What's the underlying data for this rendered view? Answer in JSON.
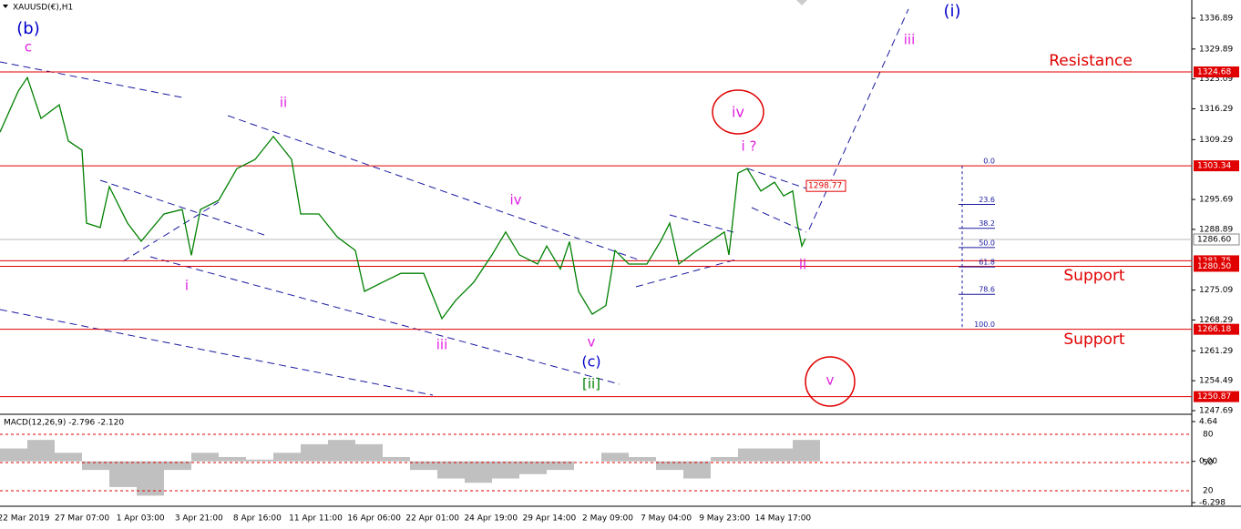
{
  "chart_data": {
    "type": "line",
    "title": "XAUUSD(€),H1",
    "x": [
      0,
      20,
      30,
      45,
      65,
      75,
      90,
      95,
      110,
      120,
      140,
      155,
      180,
      200,
      210,
      220,
      240,
      260,
      280,
      300,
      320,
      330,
      350,
      370,
      390,
      400,
      420,
      440,
      465,
      485,
      500,
      520,
      540,
      555,
      570,
      590,
      600,
      615,
      625,
      635,
      650,
      665,
      675,
      690,
      710,
      725,
      735,
      745,
      765,
      780,
      795,
      800,
      810,
      820,
      835,
      850,
      860,
      870,
      875,
      880,
      884
    ],
    "values": [
      1311,
      1320.3,
      1323.4,
      1314.1,
      1317.2,
      1309,
      1306.9,
      1290.3,
      1289.3,
      1298.6,
      1290.3,
      1286.2,
      1292.4,
      1293.4,
      1283,
      1293.4,
      1295.5,
      1302.7,
      1304.8,
      1310,
      1304.8,
      1292.4,
      1292.4,
      1287.2,
      1284.1,
      1274.8,
      1276.9,
      1278.9,
      1278.9,
      1268.6,
      1272.7,
      1276.9,
      1283.1,
      1288.3,
      1283.1,
      1281,
      1285.1,
      1279.9,
      1286.1,
      1274.8,
      1269.6,
      1271.6,
      1284.1,
      1281,
      1281,
      1286.2,
      1290.3,
      1281,
      1284.1,
      1286.2,
      1288.3,
      1283.1,
      1301.7,
      1302.7,
      1297.6,
      1299.6,
      1296.5,
      1297.6,
      1290.3,
      1285.1,
      1286.8
    ],
    "color": "#008000",
    "xlim": [
      0,
      1308
    ],
    "ylim": [
      1246.86,
      1341.03
    ],
    "yticks": [
      1336.89,
      1329.89,
      1323.09,
      1316.29,
      1309.29,
      1295.69,
      1288.89,
      1275.09,
      1268.29,
      1261.29,
      1254.49,
      1247.69
    ],
    "time_labels": [
      "22 Mar 2019",
      "27 Mar 07:00",
      "1 Apr 03:00",
      "3 Apr 21:00",
      "8 Apr 16:00",
      "11 Apr 11:00",
      "16 Apr 06:00",
      "22 Apr 01:00",
      "24 Apr 19:00",
      "29 Apr 14:00",
      "2 May 09:00",
      "7 May 04:00",
      "9 May 23:00",
      "14 May 17:00"
    ],
    "levels": [
      {
        "value": 1324.68,
        "label": "1324.68"
      },
      {
        "value": 1303.34,
        "label": "1303.34"
      },
      {
        "value": 1281.75,
        "label": "1281.75"
      },
      {
        "value": 1280.5,
        "label": "1280.50"
      },
      {
        "value": 1266.18,
        "label": "1266.18"
      },
      {
        "value": 1250.87,
        "label": "1250.87"
      }
    ],
    "level_color": "#e00000",
    "current_price": {
      "value": 1286.6,
      "label": "1286.60"
    },
    "marker_price": {
      "value": 1298.77,
      "label": "1298.77"
    },
    "fib_levels": [
      {
        "value": 0,
        "label": "0.0"
      },
      23.6,
      38.2,
      {
        "value": 50,
        "label": "50.0"
      },
      61.8,
      78.6,
      {
        "value": 100,
        "label": "100.0"
      }
    ],
    "annotations": [
      {
        "text": "(b)",
        "color": "#0000cc"
      },
      {
        "text": "c",
        "color": "#e020e0"
      },
      {
        "text": "ii",
        "color": "#e020e0"
      },
      {
        "text": "i",
        "color": "#e020e0"
      },
      {
        "text": "iii",
        "color": "#e020e0"
      },
      {
        "text": "iv",
        "color": "#e020e0"
      },
      {
        "text": "v",
        "color": "#e020e0"
      },
      {
        "text": "(c)",
        "color": "#0000cc"
      },
      {
        "text": "[ii]",
        "color": "#008000"
      },
      {
        "text": "iv",
        "color": "#e020e0"
      },
      {
        "text": "i ?",
        "color": "#e020e0"
      },
      {
        "text": "ii",
        "color": "#e020e0"
      },
      {
        "text": "iii",
        "color": "#e020e0"
      },
      {
        "text": "(i)",
        "color": "#0000cc"
      },
      {
        "text": "v",
        "color": "#e020e0"
      },
      {
        "text": "Resistance",
        "color": "#e00000"
      },
      {
        "text": "Support",
        "color": "#e00000"
      },
      {
        "text": "Support",
        "color": "#e00000"
      }
    ],
    "macd": {
      "title": "MACD(12,26,9) -2.796 -2.120",
      "x": [
        0,
        30,
        60,
        90,
        120,
        150,
        180,
        210,
        240,
        270,
        300,
        330,
        360,
        390,
        420,
        450,
        480,
        510,
        540,
        570,
        600,
        630,
        660,
        690,
        720,
        750,
        780,
        810,
        840,
        870
      ],
      "values": [
        1.5,
        2.5,
        1,
        -1,
        -3,
        -4,
        -1,
        1,
        0.5,
        0.2,
        1,
        2,
        2.5,
        2,
        0.5,
        -1,
        -2,
        -2.5,
        -2,
        -1.5,
        -1,
        0,
        1,
        0.5,
        -1,
        -2,
        0.5,
        1.5,
        1.5,
        2.5
      ],
      "color": "#c0c0c0",
      "ylim": [
        -6.298,
        4.64
      ],
      "yticks": [
        4.64,
        {
          "value": 0,
          "label": "0.00"
        },
        -6.298
      ],
      "stoch_levels": [
        80,
        50,
        20
      ]
    }
  }
}
